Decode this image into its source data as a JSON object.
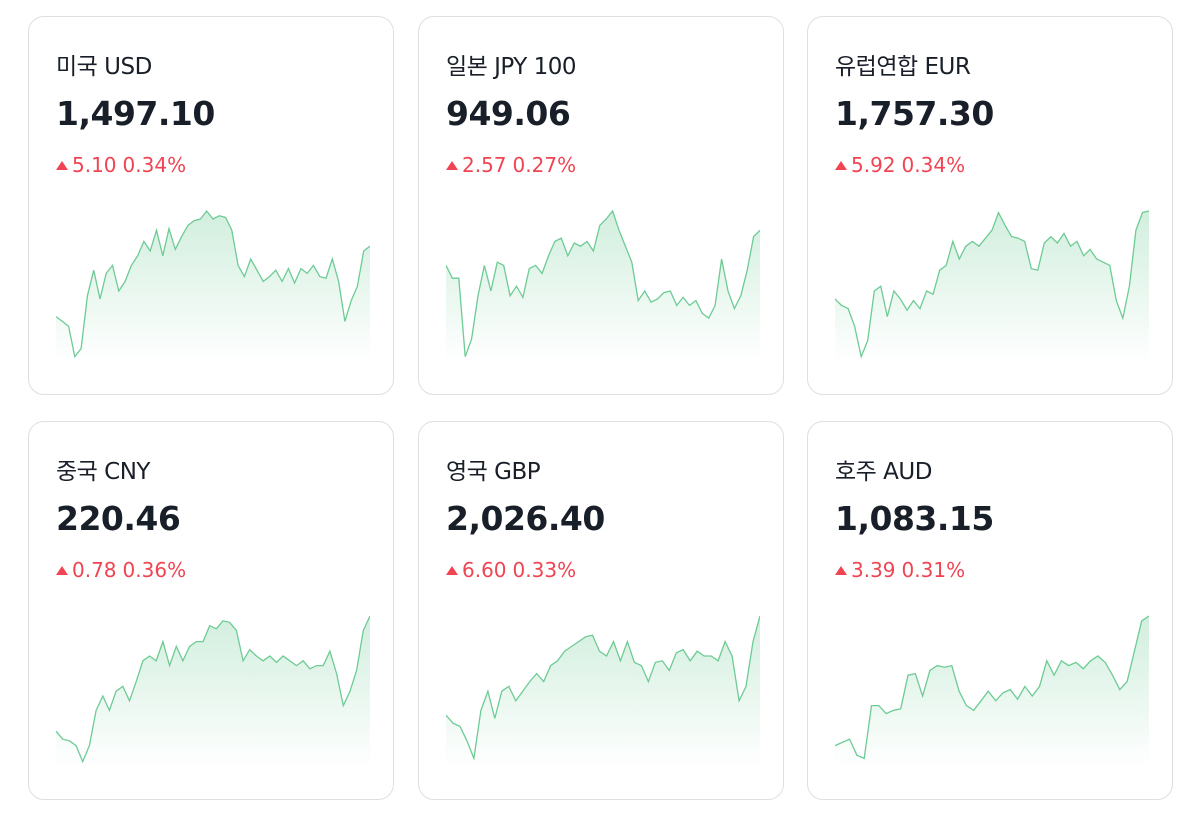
{
  "cards": [
    {
      "title": "미국 USD",
      "price": "1,497.10",
      "change": "5.10",
      "percent": "0.34%",
      "sparkline": {
        "ylim": [
          0,
          100
        ],
        "values": [
          29,
          26,
          23,
          4,
          9,
          42,
          58,
          40,
          56,
          61,
          45,
          51,
          61,
          67,
          76,
          70,
          83,
          67,
          84,
          71,
          79,
          86,
          89,
          90,
          95,
          90,
          92,
          91,
          83,
          61,
          54,
          65,
          58,
          51,
          54,
          58,
          51,
          59,
          50,
          59,
          56,
          61,
          54,
          53,
          65,
          51,
          26,
          39,
          48,
          70,
          73
        ]
      }
    },
    {
      "title": "일본 JPY 100",
      "price": "949.06",
      "change": "2.57",
      "percent": "0.27%",
      "sparkline": {
        "ylim": [
          0,
          100
        ],
        "values": [
          61,
          53,
          53,
          4,
          15,
          42,
          61,
          45,
          63,
          61,
          42,
          48,
          41,
          59,
          61,
          56,
          67,
          76,
          78,
          67,
          75,
          73,
          76,
          70,
          86,
          90,
          95,
          83,
          73,
          63,
          39,
          45,
          38,
          40,
          44,
          45,
          36,
          41,
          36,
          39,
          31,
          28,
          36,
          65,
          45,
          34,
          42,
          58,
          79,
          83
        ]
      }
    },
    {
      "title": "유럽연합 EUR",
      "price": "1,757.30",
      "change": "5.92",
      "percent": "0.34%",
      "sparkline": {
        "ylim": [
          0,
          100
        ],
        "values": [
          40,
          36,
          34,
          23,
          4,
          14,
          45,
          48,
          29,
          45,
          40,
          33,
          39,
          34,
          45,
          43,
          58,
          61,
          76,
          65,
          73,
          76,
          73,
          78,
          83,
          94,
          86,
          79,
          78,
          76,
          59,
          58,
          75,
          79,
          75,
          81,
          73,
          76,
          67,
          71,
          65,
          63,
          61,
          39,
          28,
          48,
          83,
          94,
          95
        ]
      }
    },
    {
      "title": "중국 CNY",
      "price": "220.46",
      "change": "0.78",
      "percent": "0.36%",
      "sparkline": {
        "ylim": [
          0,
          100
        ],
        "values": [
          23,
          18,
          17,
          14,
          4,
          14,
          36,
          45,
          36,
          48,
          51,
          42,
          54,
          67,
          70,
          67,
          79,
          64,
          76,
          67,
          76,
          79,
          79,
          89,
          87,
          92,
          91,
          86,
          67,
          74,
          70,
          67,
          70,
          66,
          70,
          67,
          64,
          67,
          62,
          64,
          64,
          73,
          59,
          39,
          48,
          61,
          86,
          95
        ]
      }
    },
    {
      "title": "영국 GBP",
      "price": "2,026.40",
      "change": "6.60",
      "percent": "0.33%",
      "sparkline": {
        "ylim": [
          0,
          100
        ],
        "values": [
          33,
          28,
          26,
          17,
          6,
          36,
          48,
          31,
          48,
          51,
          42,
          48,
          54,
          59,
          54,
          64,
          67,
          73,
          76,
          79,
          82,
          83,
          73,
          70,
          79,
          67,
          79,
          66,
          64,
          54,
          66,
          67,
          61,
          72,
          74,
          67,
          73,
          70,
          70,
          67,
          79,
          70,
          42,
          51,
          79,
          95
        ]
      }
    },
    {
      "title": "호주 AUD",
      "price": "1,083.15",
      "change": "3.39",
      "percent": "0.31%",
      "sparkline": {
        "ylim": [
          0,
          100
        ],
        "values": [
          14,
          16,
          18,
          8,
          6,
          39,
          39,
          34,
          36,
          37,
          58,
          59,
          45,
          61,
          64,
          63,
          64,
          48,
          39,
          36,
          42,
          48,
          42,
          47,
          49,
          43,
          51,
          45,
          51,
          67,
          58,
          67,
          64,
          66,
          62,
          67,
          70,
          66,
          58,
          49,
          54,
          73,
          92,
          95
        ]
      }
    }
  ]
}
